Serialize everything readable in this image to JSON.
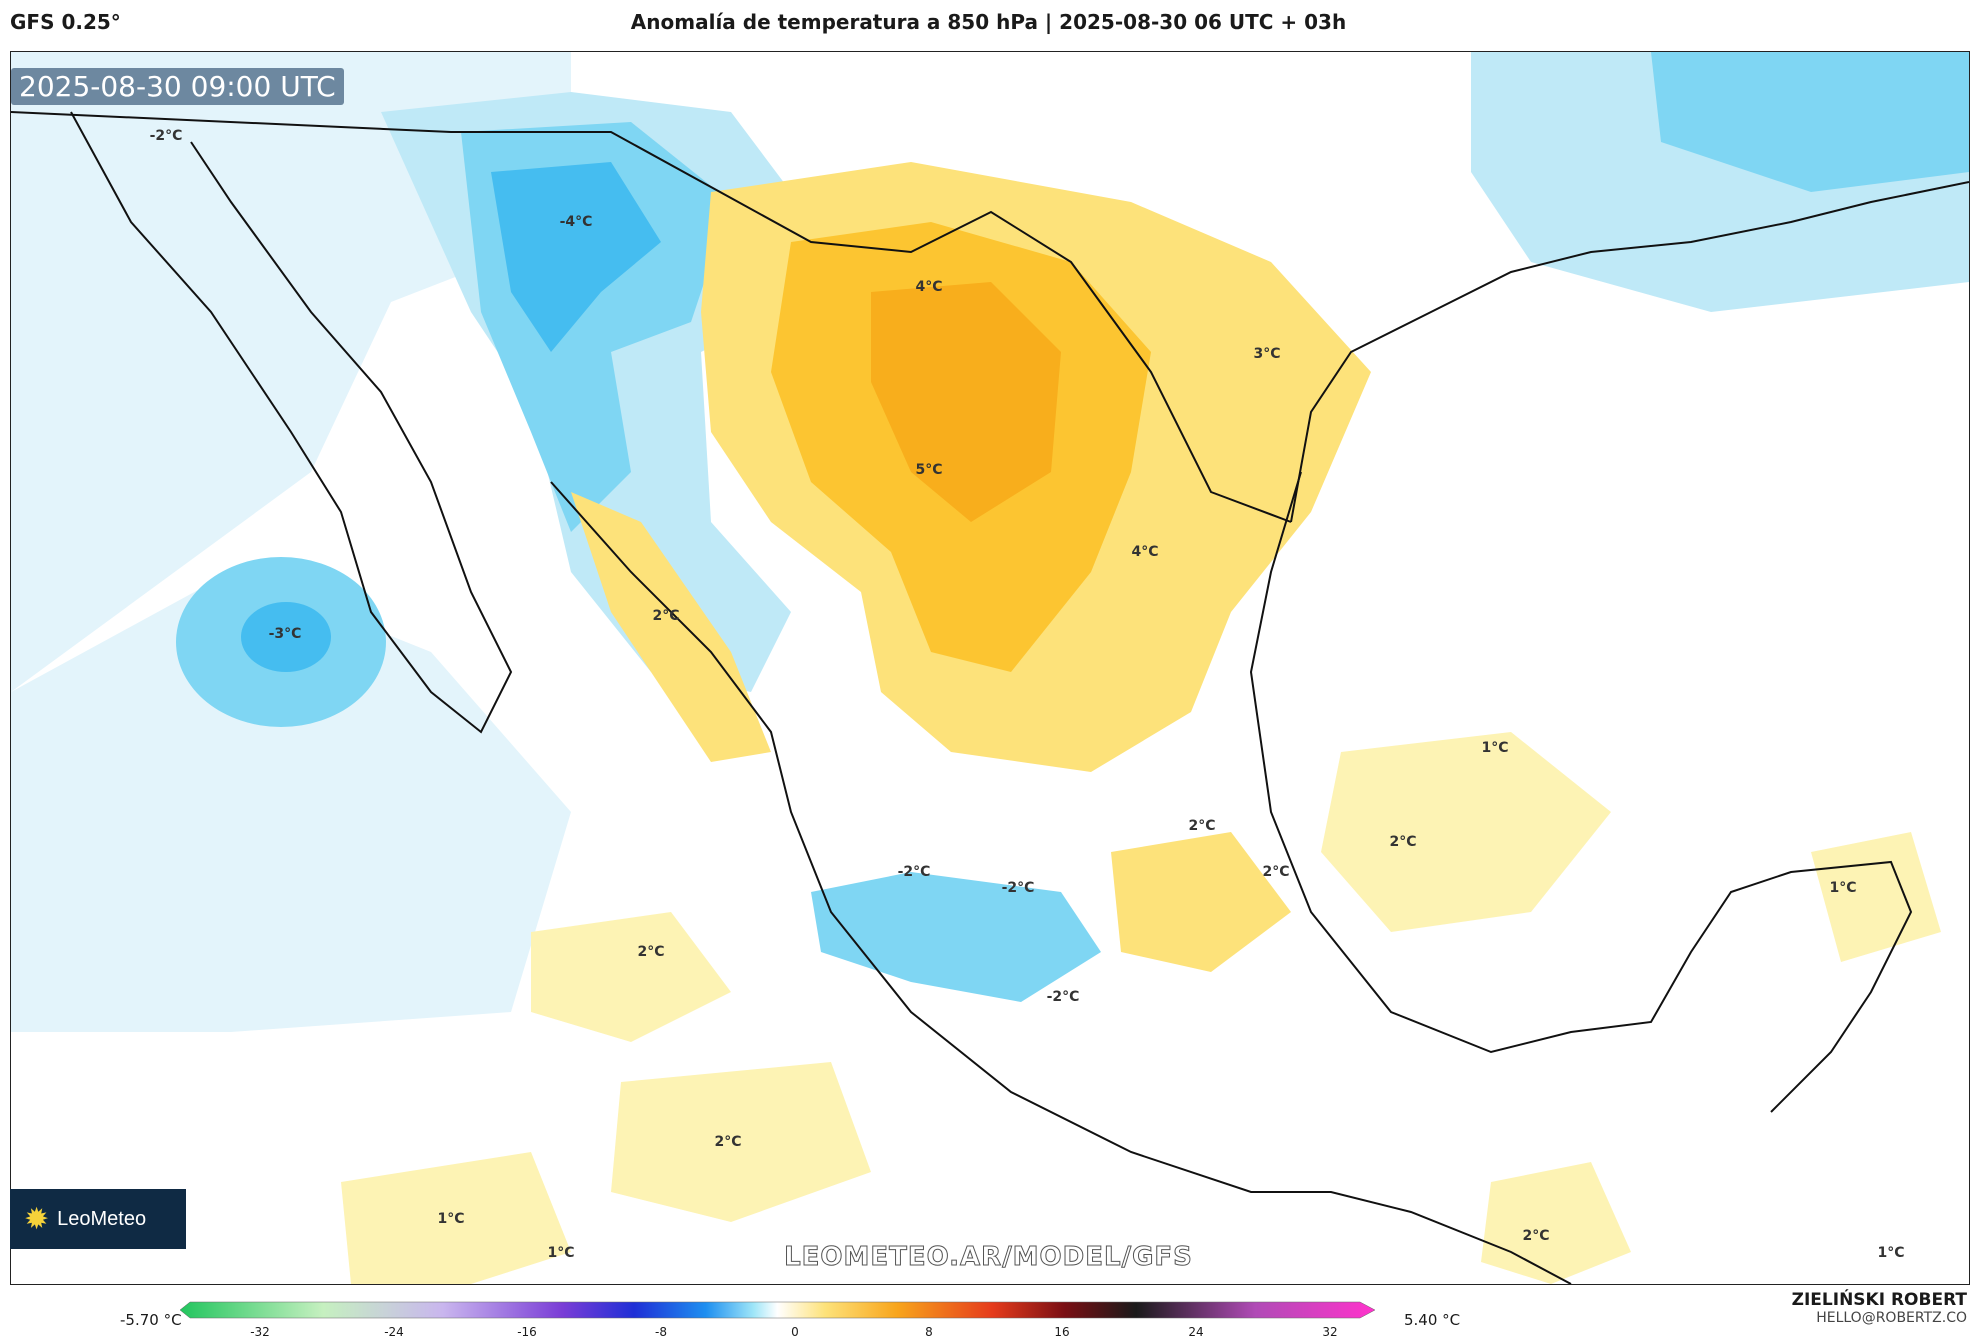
{
  "header": {
    "model": "GFS 0.25°",
    "title": "Anomalía de temperatura a 850 hPa | 2025-08-30 06 UTC + 03h"
  },
  "map": {
    "valid_time": "2025-08-30 09:00 UTC",
    "contour_labels": [
      "-2°C",
      "-4°C",
      "4°C",
      "3°C",
      "5°C",
      "4°C",
      "2°C",
      "-3°C",
      "1°C",
      "2°C",
      "2°C",
      "-2°C",
      "-2°C",
      "2°C",
      "2°C",
      "1°C",
      "-2°C",
      "2°C",
      "1°C",
      "1°C",
      "2°C",
      "1°C"
    ]
  },
  "branding": {
    "logo": "LeoMeteo",
    "watermark": "LEOMETEO.AR/MODEL/GFS",
    "author": "ZIELIŃSKI ROBERT",
    "email": "HELLO@ROBERTZ.CO"
  },
  "colorbar": {
    "min_label": "-5.70 °C",
    "max_label": "5.40 °C",
    "ticks": [
      "-32",
      "-24",
      "-16",
      "-8",
      "0",
      "8",
      "16",
      "24",
      "32"
    ]
  },
  "colors": {
    "warm_light": "#fdf3b4",
    "warm_mid": "#fde27a",
    "warm_strong": "#fcc531",
    "warm_core": "#f8ae1c",
    "cool_light": "#e3f4fb",
    "cool_mid": "#bfe9f7",
    "cool_strong": "#7fd6f3",
    "cool_core": "#45bdf0"
  }
}
